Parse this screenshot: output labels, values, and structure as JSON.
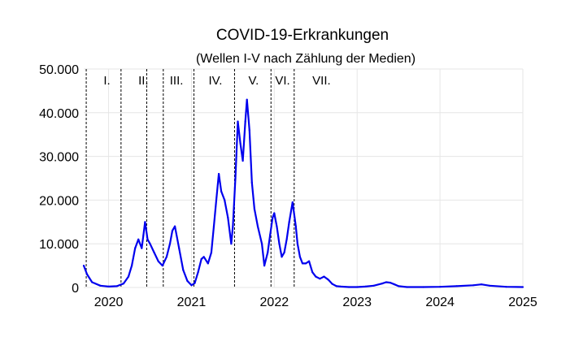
{
  "chart_data": {
    "type": "line",
    "title": "COVID-19-Erkrankungen",
    "subtitle": "(Wellen I-V nach Zählung der Medien)",
    "xlabel": "",
    "ylabel": "",
    "xlim": [
      2019.7,
      2025.0
    ],
    "ylim": [
      0,
      50000
    ],
    "grid": true,
    "y_ticks": [
      {
        "value": 0,
        "label": "0"
      },
      {
        "value": 10000,
        "label": "10.000"
      },
      {
        "value": 20000,
        "label": "20.000"
      },
      {
        "value": 30000,
        "label": "30.000"
      },
      {
        "value": 40000,
        "label": "40.000"
      },
      {
        "value": 50000,
        "label": "50.000"
      }
    ],
    "x_ticks": [
      {
        "value": 2020,
        "label": "2020"
      },
      {
        "value": 2021,
        "label": "2021"
      },
      {
        "value": 2022,
        "label": "2022"
      },
      {
        "value": 2023,
        "label": "2023"
      },
      {
        "value": 2024,
        "label": "2024"
      },
      {
        "value": 2025,
        "label": "2025"
      }
    ],
    "wave_boundaries": [
      2019.73,
      2020.15,
      2020.46,
      2020.66,
      2021.03,
      2021.52,
      2021.96,
      2022.24
    ],
    "wave_labels": [
      {
        "label": "I.",
        "x": 2019.98
      },
      {
        "label": "II.",
        "x": 2020.42
      },
      {
        "label": "III.",
        "x": 2020.82
      },
      {
        "label": "IV.",
        "x": 2021.29
      },
      {
        "label": "V.",
        "x": 2021.75
      },
      {
        "label": "VI.",
        "x": 2022.1
      },
      {
        "label": "VII.",
        "x": 2022.57
      }
    ],
    "series": [
      {
        "color": "#0000ee",
        "x": [
          2019.7,
          2019.74,
          2019.8,
          2019.9,
          2020.0,
          2020.1,
          2020.18,
          2020.24,
          2020.28,
          2020.32,
          2020.36,
          2020.4,
          2020.42,
          2020.44,
          2020.47,
          2020.5,
          2020.55,
          2020.6,
          2020.65,
          2020.7,
          2020.74,
          2020.77,
          2020.8,
          2020.85,
          2020.9,
          2020.95,
          2021.0,
          2021.04,
          2021.08,
          2021.12,
          2021.15,
          2021.2,
          2021.24,
          2021.27,
          2021.3,
          2021.33,
          2021.36,
          2021.4,
          2021.44,
          2021.48,
          2021.5,
          2021.53,
          2021.56,
          2021.59,
          2021.62,
          2021.65,
          2021.67,
          2021.7,
          2021.73,
          2021.76,
          2021.8,
          2021.85,
          2021.88,
          2021.92,
          2021.95,
          2021.98,
          2022.0,
          2022.03,
          2022.06,
          2022.09,
          2022.12,
          2022.15,
          2022.18,
          2022.22,
          2022.26,
          2022.28,
          2022.31,
          2022.34,
          2022.38,
          2022.42,
          2022.46,
          2022.5,
          2022.55,
          2022.6,
          2022.65,
          2022.7,
          2022.75,
          2022.8,
          2022.9,
          2023.0,
          2023.1,
          2023.2,
          2023.3,
          2023.35,
          2023.4,
          2023.45,
          2023.5,
          2023.6,
          2023.8,
          2024.0,
          2024.2,
          2024.4,
          2024.5,
          2024.6,
          2024.8,
          2025.0
        ],
        "y": [
          5000,
          3000,
          1200,
          400,
          200,
          300,
          900,
          2500,
          5000,
          9000,
          11000,
          9000,
          12000,
          15000,
          11000,
          10000,
          8000,
          6000,
          5000,
          7000,
          10000,
          13000,
          14000,
          9000,
          4000,
          1500,
          500,
          1000,
          3500,
          6500,
          7000,
          5500,
          8000,
          14000,
          20000,
          26000,
          22000,
          20000,
          16000,
          10000,
          14000,
          25000,
          38000,
          33000,
          29000,
          38000,
          43000,
          36000,
          24000,
          18000,
          14000,
          10000,
          5000,
          8000,
          12000,
          16000,
          17000,
          14000,
          10000,
          7000,
          8000,
          11000,
          15000,
          19500,
          14000,
          10000,
          7000,
          5500,
          5500,
          6000,
          3500,
          2500,
          2000,
          2500,
          1800,
          800,
          300,
          200,
          100,
          100,
          200,
          400,
          900,
          1200,
          1100,
          700,
          300,
          100,
          100,
          150,
          300,
          500,
          700,
          400,
          150,
          100
        ]
      }
    ]
  }
}
